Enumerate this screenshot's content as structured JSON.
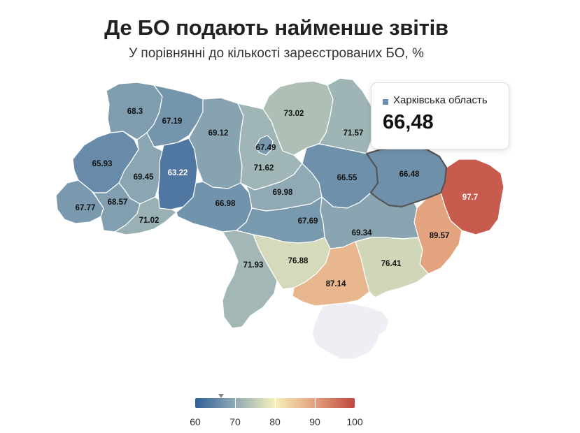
{
  "title": "Де БО подають найменше звітів",
  "subtitle": "У порівнянні до кількості зареєстрованих БО, %",
  "tooltip": {
    "region": "Харківська область",
    "value": "66,48",
    "color": "#6a8fb3"
  },
  "colorScale": {
    "domain": [
      60,
      70,
      80,
      90,
      100
    ],
    "colors": [
      "#305f99",
      "#8faab4",
      "#f5f0bc",
      "#e3a07c",
      "#bf4840"
    ]
  },
  "legend": {
    "ticks": [
      "60",
      "70",
      "80",
      "90",
      "100"
    ],
    "marker": 66.48
  },
  "regions": [
    {
      "id": "volyn",
      "value": 68.3,
      "label": "68.3"
    },
    {
      "id": "rivne",
      "value": 67.19,
      "label": "67.19"
    },
    {
      "id": "lviv",
      "value": 65.93,
      "label": "65.93"
    },
    {
      "id": "ternopil",
      "value": 69.45,
      "label": "69.45"
    },
    {
      "id": "khmelnytskyi",
      "value": 63.22,
      "label": "63.22"
    },
    {
      "id": "zakarpattia",
      "value": 67.77,
      "label": "67.77"
    },
    {
      "id": "ivano-frankivsk",
      "value": 68.57,
      "label": "68.57"
    },
    {
      "id": "chernivtsi",
      "value": 71.02,
      "label": "71.02"
    },
    {
      "id": "zhytomyr",
      "value": 69.12,
      "label": "69.12"
    },
    {
      "id": "kyiv-city",
      "value": 67.49,
      "label": "67.49"
    },
    {
      "id": "kyiv-oblast",
      "value": 71.62,
      "label": "71.62"
    },
    {
      "id": "vinnytsia",
      "value": 66.98,
      "label": "66.98"
    },
    {
      "id": "chernihiv",
      "value": 73.02,
      "label": "73.02"
    },
    {
      "id": "sumy",
      "value": 71.57,
      "label": "71.57"
    },
    {
      "id": "cherkasy",
      "value": 69.98,
      "label": "69.98"
    },
    {
      "id": "poltava",
      "value": 66.55,
      "label": "66.55"
    },
    {
      "id": "kharkiv",
      "value": 66.48,
      "label": "66.48"
    },
    {
      "id": "luhansk",
      "value": 97.7,
      "label": "97.7"
    },
    {
      "id": "donetsk",
      "value": 89.57,
      "label": "89.57"
    },
    {
      "id": "kirovohrad",
      "value": 67.69,
      "label": "67.69"
    },
    {
      "id": "dnipropetrovsk",
      "value": 69.34,
      "label": "69.34"
    },
    {
      "id": "odesa",
      "value": 71.93,
      "label": "71.93"
    },
    {
      "id": "mykolaiv",
      "value": 76.88,
      "label": "76.88"
    },
    {
      "id": "zaporizhzhia",
      "value": 76.41,
      "label": "76.41"
    },
    {
      "id": "kherson",
      "value": 87.14,
      "label": "87.14"
    },
    {
      "id": "crimea",
      "value": null,
      "label": ""
    }
  ]
}
